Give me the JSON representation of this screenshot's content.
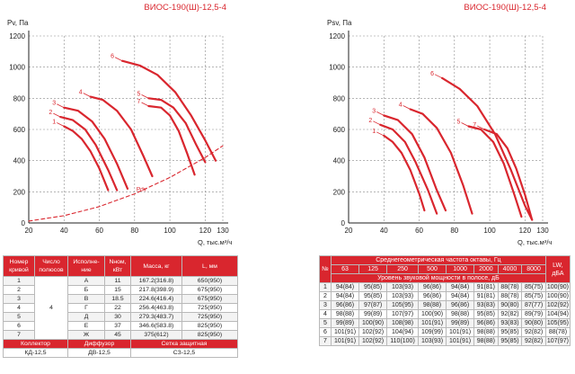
{
  "chart_data": [
    {
      "type": "line",
      "title": "ВИОС-190(Ш)-12,5-4",
      "ylabel": "Pv, Па",
      "xlabel": "Q, тыс.м³/ч",
      "xlim": [
        20,
        130
      ],
      "ylim": [
        0,
        1200
      ],
      "xticks": [
        "20",
        "40",
        "60",
        "80",
        "100",
        "120",
        "130"
      ],
      "yticks": [
        "0",
        "200",
        "400",
        "600",
        "800",
        "1000",
        "1200"
      ],
      "grid": true,
      "color": "#d9262e",
      "series": [
        {
          "name": "1",
          "x": [
            40,
            45,
            50,
            55,
            60,
            65
          ],
          "y": [
            620,
            590,
            540,
            460,
            350,
            210
          ]
        },
        {
          "name": "2",
          "x": [
            38,
            45,
            52,
            58,
            65,
            70
          ],
          "y": [
            680,
            660,
            600,
            500,
            340,
            210
          ]
        },
        {
          "name": "3",
          "x": [
            40,
            48,
            56,
            63,
            70,
            76
          ],
          "y": [
            740,
            720,
            650,
            540,
            380,
            220
          ]
        },
        {
          "name": "4",
          "x": [
            55,
            62,
            70,
            78,
            85,
            90
          ],
          "y": [
            810,
            790,
            720,
            600,
            430,
            300
          ]
        },
        {
          "name": "5",
          "x": [
            88,
            95,
            102,
            109,
            115,
            120
          ],
          "y": [
            800,
            790,
            740,
            640,
            500,
            390
          ]
        },
        {
          "name": "6",
          "x": [
            73,
            83,
            93,
            103,
            112,
            120,
            126
          ],
          "y": [
            1040,
            1010,
            950,
            840,
            690,
            530,
            400
          ]
        },
        {
          "name": "7",
          "x": [
            88,
            95,
            100,
            105,
            110,
            114
          ],
          "y": [
            750,
            740,
            690,
            590,
            440,
            310
          ]
        },
        {
          "name": "Pdv",
          "dashed": true,
          "x": [
            20,
            40,
            60,
            80,
            100,
            120,
            130
          ],
          "y": [
            12,
            47,
            105,
            187,
            292,
            420,
            495
          ]
        }
      ]
    },
    {
      "type": "line",
      "title": "ВИОС-190(Ш)-12,5-4",
      "ylabel": "Psv, Па",
      "xlabel": "Q, тыс.м³/ч",
      "xlim": [
        20,
        130
      ],
      "ylim": [
        0,
        1200
      ],
      "xticks": [
        "20",
        "40",
        "60",
        "80",
        "100",
        "120",
        "130"
      ],
      "yticks": [
        "0",
        "200",
        "400",
        "600",
        "800",
        "1000",
        "1200"
      ],
      "grid": true,
      "color": "#d9262e",
      "series": [
        {
          "name": "1",
          "x": [
            40,
            45,
            50,
            55,
            60,
            63
          ],
          "y": [
            560,
            520,
            450,
            340,
            190,
            80
          ]
        },
        {
          "name": "2",
          "x": [
            38,
            45,
            52,
            58,
            65,
            70
          ],
          "y": [
            630,
            600,
            520,
            390,
            210,
            60
          ]
        },
        {
          "name": "3",
          "x": [
            40,
            48,
            56,
            63,
            70,
            75
          ],
          "y": [
            690,
            660,
            570,
            420,
            210,
            80
          ]
        },
        {
          "name": "4",
          "x": [
            55,
            62,
            70,
            78,
            85,
            90
          ],
          "y": [
            730,
            700,
            610,
            450,
            240,
            60
          ]
        },
        {
          "name": "5",
          "x": [
            88,
            95,
            102,
            108,
            114,
            118
          ],
          "y": [
            620,
            600,
            520,
            380,
            180,
            40
          ]
        },
        {
          "name": "6",
          "x": [
            73,
            83,
            93,
            103,
            112,
            120,
            124
          ],
          "y": [
            930,
            860,
            750,
            570,
            340,
            110,
            20
          ]
        },
        {
          "name": "7",
          "x": [
            97,
            104,
            110,
            115,
            120,
            124
          ],
          "y": [
            600,
            570,
            480,
            350,
            180,
            20
          ]
        }
      ]
    }
  ],
  "left_table": {
    "headers": [
      "Номер кривой",
      "Число полюсов",
      "Исполне-ние",
      "Nном, кВт",
      "Масса, кг",
      "L, мм"
    ],
    "poles": "4",
    "rows": [
      [
        "1",
        "А",
        "11",
        "167.2(316.8)",
        "650(950)"
      ],
      [
        "2",
        "Б",
        "15",
        "217.8(398.9)",
        "675(950)"
      ],
      [
        "3",
        "В",
        "18.5",
        "224.6(416.4)",
        "675(950)"
      ],
      [
        "4",
        "Г",
        "22",
        "256.4(463.8)",
        "725(950)"
      ],
      [
        "5",
        "Д",
        "30",
        "279.3(483.7)",
        "725(950)"
      ],
      [
        "6",
        "Е",
        "37",
        "346.6(583.8)",
        "825(950)"
      ],
      [
        "7",
        "Ж",
        "45",
        "375(612)",
        "825(950)"
      ]
    ],
    "footer_headers": [
      "Коллектор",
      "Диффузор",
      "Сетка защитная"
    ],
    "footer_values": [
      "КД-12,5",
      "ДВ-12,5",
      "СЗ-12,5"
    ]
  },
  "right_table": {
    "col1_header": "№",
    "band_header": "Среднегеометрическая частота октавы, Гц",
    "freqs": [
      "63",
      "125",
      "250",
      "500",
      "1000",
      "2000",
      "4000",
      "8000"
    ],
    "lw_header": "LW, дБА",
    "sub_header": "Уровень звуковой мощности в полосе, дБ",
    "rows": [
      [
        "1",
        "94(84)",
        "95(85)",
        "103(93)",
        "96(86)",
        "94(84)",
        "91(81)",
        "88(78)",
        "85(75)",
        "100(90)"
      ],
      [
        "2",
        "94(84)",
        "95(85)",
        "103(93)",
        "96(86)",
        "94(84)",
        "91(81)",
        "88(78)",
        "85(75)",
        "100(90)"
      ],
      [
        "3",
        "96(86)",
        "97(87)",
        "105(95)",
        "98(88)",
        "96(86)",
        "93(83)",
        "90(80)",
        "87(77)",
        "102(92)"
      ],
      [
        "4",
        "98(88)",
        "99(89)",
        "107(97)",
        "100(90)",
        "98(88)",
        "95(85)",
        "92(82)",
        "89(79)",
        "104(94)"
      ],
      [
        "5",
        "99(89)",
        "100(90)",
        "108(98)",
        "101(91)",
        "99(89)",
        "96(86)",
        "93(83)",
        "90(80)",
        "105(95)"
      ],
      [
        "6",
        "101(91)",
        "102(92)",
        "104(94)",
        "109(99)",
        "101(91)",
        "98(88)",
        "95(85)",
        "92(82)",
        "88(78)"
      ],
      [
        "7",
        "101(91)",
        "102(92)",
        "110(100)",
        "103(93)",
        "101(91)",
        "98(88)",
        "95(85)",
        "92(82)",
        "107(97)"
      ]
    ]
  }
}
